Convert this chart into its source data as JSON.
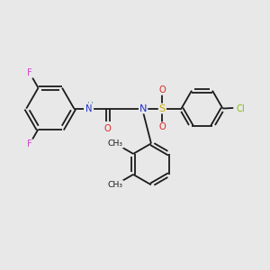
{
  "background_color": "#e8e8e8",
  "bond_color": "#1a1a1a",
  "figsize": [
    3.0,
    3.0
  ],
  "dpi": 100,
  "atom_colors": {
    "F": "#cc44cc",
    "N": "#2233cc",
    "O": "#dd2222",
    "S": "#ccaa00",
    "Cl": "#88bb00",
    "H": "#558899",
    "C": "#1a1a1a"
  },
  "xlim": [
    0,
    10
  ],
  "ylim": [
    0,
    10
  ]
}
